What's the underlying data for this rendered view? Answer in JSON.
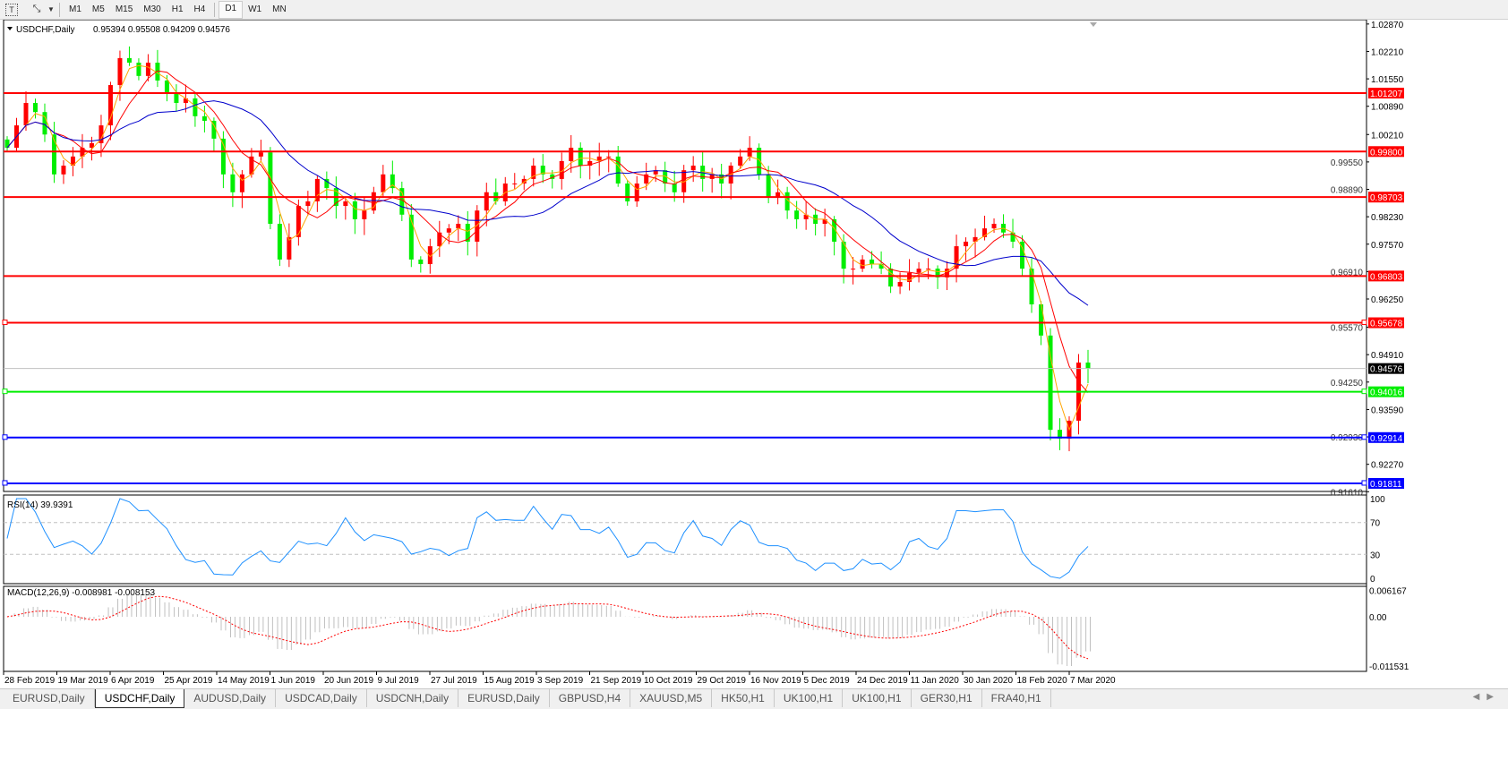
{
  "toolbar": {
    "icons": [
      "text-tool-icon",
      "draw-tools-icon",
      "dropdown-arrow-icon"
    ],
    "timeframes": [
      "M1",
      "M5",
      "M15",
      "M30",
      "H1",
      "H4",
      "D1",
      "W1",
      "MN"
    ],
    "active_timeframe": "D1"
  },
  "chart_header": {
    "symbol": "USDCHF,Daily",
    "ohlc": "0.95394 0.95508 0.94209 0.94576"
  },
  "rsi_header": "RSI(14) 39.9391",
  "macd_header": "MACD(12,26,9) -0.008981 -0.008153",
  "tabs": [
    "EURUSD,Daily",
    "USDCHF,Daily",
    "AUDUSD,Daily",
    "USDCAD,Daily",
    "USDCNH,Daily",
    "EURUSD,Daily",
    "GBPUSD,H4",
    "XAUUSD,M5",
    "HK50,H1",
    "UK100,H1",
    "UK100,H1",
    "GER30,H1",
    "FRA40,H1"
  ],
  "active_tab": 1,
  "colors": {
    "bull_candle": "#ff0000",
    "bear_candle": "#00ee00",
    "ma_fast": "#ffa500",
    "ma_mid": "#ff0000",
    "ma_slow": "#0000cc",
    "rsi_line": "#1e90ff",
    "macd_hist": "#c0c0c0",
    "macd_signal": "#ff0000"
  },
  "chart_data": {
    "type": "candlestick",
    "symbol": "USDCHF",
    "timeframe": "Daily",
    "x_tick_labels": [
      "28 Feb 2019",
      "19 Mar 2019",
      "6 Apr 2019",
      "25 Apr 2019",
      "14 May 2019",
      "1 Jun 2019",
      "20 Jun 2019",
      "9 Jul 2019",
      "27 Jul 2019",
      "15 Aug 2019",
      "3 Sep 2019",
      "21 Sep 2019",
      "10 Oct 2019",
      "29 Oct 2019",
      "16 Nov 2019",
      "5 Dec 2019",
      "24 Dec 2019",
      "11 Jan 2020",
      "30 Jan 2020",
      "18 Feb 2020",
      "7 Mar 2020"
    ],
    "y_tick_labels": [
      "1.02870",
      "1.02210",
      "1.01550",
      "1.00890",
      "1.00210",
      "0.99550",
      "0.98890",
      "0.98230",
      "0.97570",
      "0.96910",
      "0.96250",
      "0.95570",
      "0.94910",
      "0.94250",
      "0.93590",
      "0.92930",
      "0.92270",
      "0.91610"
    ],
    "ylim": [
      0.9161,
      1.0287
    ],
    "closes": [
      0.9989,
      1.0043,
      1.0097,
      1.0075,
      1.0021,
      0.9925,
      0.9946,
      0.9968,
      0.9989,
      1.0,
      1.0043,
      1.014,
      1.0205,
      1.0194,
      1.0162,
      1.0194,
      1.0151,
      1.0119,
      1.0097,
      1.0108,
      1.0065,
      1.0054,
      1.0011,
      0.9925,
      0.9882,
      0.9925,
      0.9968,
      0.9978,
      0.9806,
      0.972,
      0.9774,
      0.9849,
      0.986,
      0.9914,
      0.9892,
      0.9849,
      0.986,
      0.9817,
      0.9838,
      0.9882,
      0.9925,
      0.9892,
      0.9828,
      0.972,
      0.9709,
      0.9752,
      0.9785,
      0.9795,
      0.9806,
      0.9763,
      0.9838,
      0.9882,
      0.986,
      0.9903,
      0.9903,
      0.9914,
      0.9946,
      0.9925,
      0.9914,
      0.9957,
      0.9989,
      0.9946,
      0.9957,
      0.9968,
      0.9968,
      0.9903,
      0.986,
      0.9903,
      0.9925,
      0.9935,
      0.9903,
      0.9882,
      0.9935,
      0.9946,
      0.9914,
      0.9925,
      0.9903,
      0.9946,
      0.9968,
      0.9989,
      0.9925,
      0.9871,
      0.9882,
      0.9838,
      0.9817,
      0.9828,
      0.9806,
      0.9817,
      0.9763,
      0.9698,
      0.9698,
      0.972,
      0.9709,
      0.9698,
      0.9655,
      0.9666,
      0.9688,
      0.9698,
      0.9698,
      0.9677,
      0.9698,
      0.9752,
      0.9763,
      0.9774,
      0.9795,
      0.9806,
      0.9785,
      0.9763,
      0.9698,
      0.9612,
      0.9537,
      0.931,
      0.9289,
      0.9332,
      0.9472,
      0.94576
    ],
    "levels": [
      {
        "price": 1.01207,
        "label": "1.01207",
        "color": "#ff0000"
      },
      {
        "price": 0.998,
        "label": "0.99800",
        "color": "#ff0000"
      },
      {
        "price": 0.98703,
        "label": "0.98703",
        "color": "#ff0000"
      },
      {
        "price": 0.96803,
        "label": "0.96803",
        "color": "#ff0000"
      },
      {
        "price": 0.95678,
        "label": "0.95678",
        "color": "#ff0000"
      },
      {
        "price": 0.94576,
        "label": "0.94576",
        "color": "#000000",
        "current": true
      },
      {
        "price": 0.94016,
        "label": "0.94016",
        "color": "#00ee00"
      },
      {
        "price": 0.92914,
        "label": "0.92914",
        "color": "#0000ff"
      },
      {
        "price": 0.91811,
        "label": "0.91811",
        "color": "#0000ff"
      }
    ],
    "rsi": {
      "ticks": [
        "100",
        "70",
        "30",
        "0"
      ],
      "levels": [
        70,
        30
      ],
      "value": 39.9391
    },
    "macd": {
      "ticks": [
        "0.006167",
        "0.00",
        "-0.011531"
      ],
      "ylim": [
        -0.011531,
        0.006167
      ],
      "main": -0.008981,
      "signal": -0.008153
    }
  }
}
